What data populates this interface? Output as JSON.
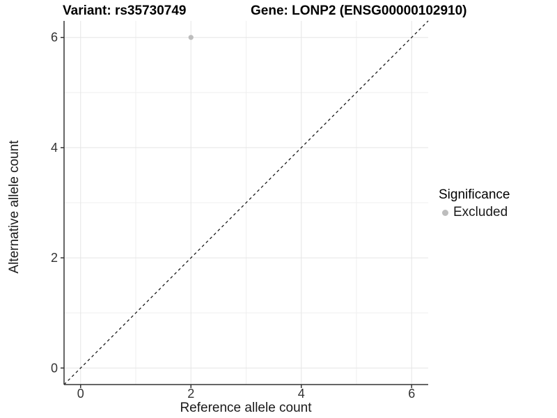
{
  "header": {
    "variant_title": "Variant: rs35730749",
    "gene_title": "Gene: LONP2 (ENSG00000102910)"
  },
  "axes": {
    "x_label": "Reference allele count",
    "y_label": "Alternative allele count"
  },
  "legend": {
    "title": "Significance",
    "items": [
      {
        "label": "Excluded",
        "marker": "circle",
        "color": "#bdbdbd"
      }
    ]
  },
  "chart_data": {
    "type": "scatter",
    "title": "Variant: rs35730749   Gene: LONP2 (ENSG00000102910)",
    "xlabel": "Reference allele count",
    "ylabel": "Alternative allele count",
    "xlim": [
      -0.3,
      6.3
    ],
    "ylim": [
      -0.3,
      6.3
    ],
    "x_ticks": [
      0,
      2,
      4,
      6
    ],
    "y_ticks": [
      0,
      2,
      4,
      6
    ],
    "x_minor_gridlines": [
      1,
      3,
      5
    ],
    "y_minor_gridlines": [
      1,
      3,
      5
    ],
    "grid": "major and minor, light gray on white",
    "legend_position": "right-center",
    "series": [
      {
        "name": "Excluded",
        "type": "scatter",
        "color": "#bdbdbd",
        "points": [
          {
            "x": 2,
            "y": 6
          }
        ]
      }
    ],
    "annotations": [
      {
        "type": "reference-line",
        "equation": "y = x",
        "style": "dashed",
        "color": "#1a1a1a",
        "from": [
          -0.3,
          -0.3
        ],
        "to": [
          6.3,
          6.3
        ]
      }
    ]
  },
  "colors": {
    "background": "#ffffff",
    "grid_major": "#e5e5e5",
    "grid_minor": "#efefef",
    "axis": "#333333",
    "tick_label": "#333333",
    "point": "#bdbdbd",
    "dashed_line": "#1a1a1a"
  }
}
